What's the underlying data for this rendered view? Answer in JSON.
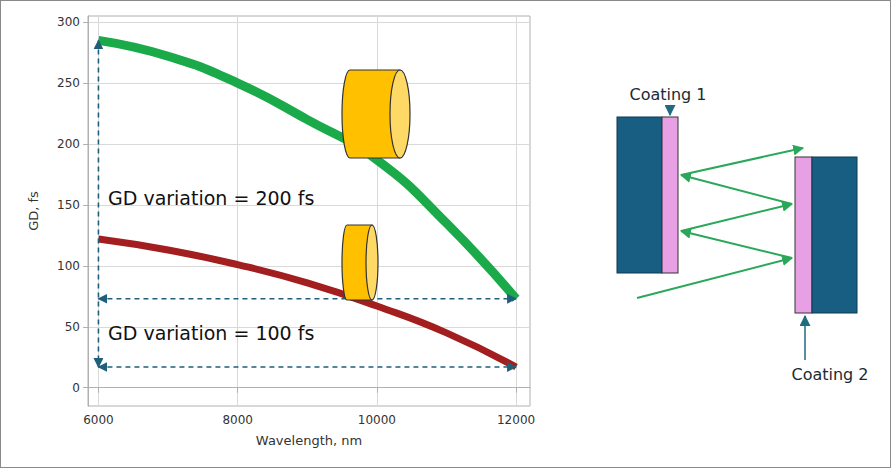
{
  "chart_data": {
    "type": "line",
    "x": [
      6000,
      7000,
      8000,
      9000,
      10000,
      11000,
      12000
    ],
    "series": [
      {
        "color": "#1aaa4a",
        "values": [
          285,
          272,
          250,
          220,
          187,
          135,
          73
        ]
      },
      {
        "color": "#a31f1f",
        "values": [
          122,
          113,
          101,
          86,
          67,
          45,
          17
        ]
      }
    ],
    "xlabel": "Wavelength, nm",
    "ylabel": "GD, fs",
    "xlim": [
      5850,
      12200
    ],
    "ylim": [
      -15,
      305
    ],
    "xticks": [
      6000,
      8000,
      10000,
      12000
    ],
    "yticks": [
      0,
      50,
      100,
      150,
      200,
      250,
      300
    ],
    "grid": true,
    "annotations": [
      "GD variation = 200 fs",
      "GD variation = 100 fs"
    ]
  },
  "diagram": {
    "labels": [
      "Coating 1",
      "Coating 2"
    ]
  }
}
